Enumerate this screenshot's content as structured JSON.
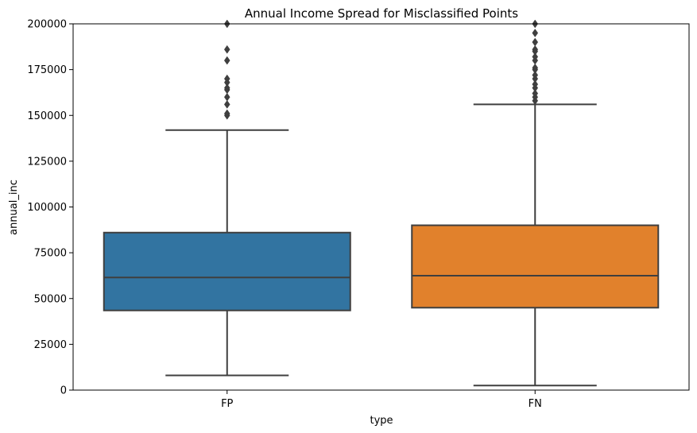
{
  "chart_data": {
    "type": "box",
    "title": "Annual Income Spread for Misclassified Points",
    "xlabel": "type",
    "ylabel": "annual_inc",
    "ylim": [
      0,
      200000
    ],
    "yticks": [
      0,
      25000,
      50000,
      75000,
      100000,
      125000,
      150000,
      175000,
      200000
    ],
    "ytick_labels": [
      "0",
      "25000",
      "50000",
      "75000",
      "100000",
      "125000",
      "150000",
      "175000",
      "200000"
    ],
    "grid": false,
    "legend": false,
    "categories": [
      "FP",
      "FN"
    ],
    "boxes": [
      {
        "category": "FP",
        "color": "#3274a1",
        "whisker_low": 8000,
        "q1": 43500,
        "median": 61500,
        "q3": 86000,
        "whisker_high": 142000,
        "outliers": [
          150000,
          151000,
          156000,
          160000,
          164000,
          165000,
          168000,
          170000,
          180000,
          186000,
          200000
        ]
      },
      {
        "category": "FN",
        "color": "#e1812c",
        "whisker_low": 2500,
        "q1": 45000,
        "median": 62500,
        "q3": 90000,
        "whisker_high": 156000,
        "outliers": [
          158000,
          160000,
          162000,
          165000,
          167000,
          170000,
          172000,
          175000,
          176000,
          180000,
          182000,
          185000,
          186000,
          190000,
          195000,
          200000
        ]
      }
    ]
  }
}
